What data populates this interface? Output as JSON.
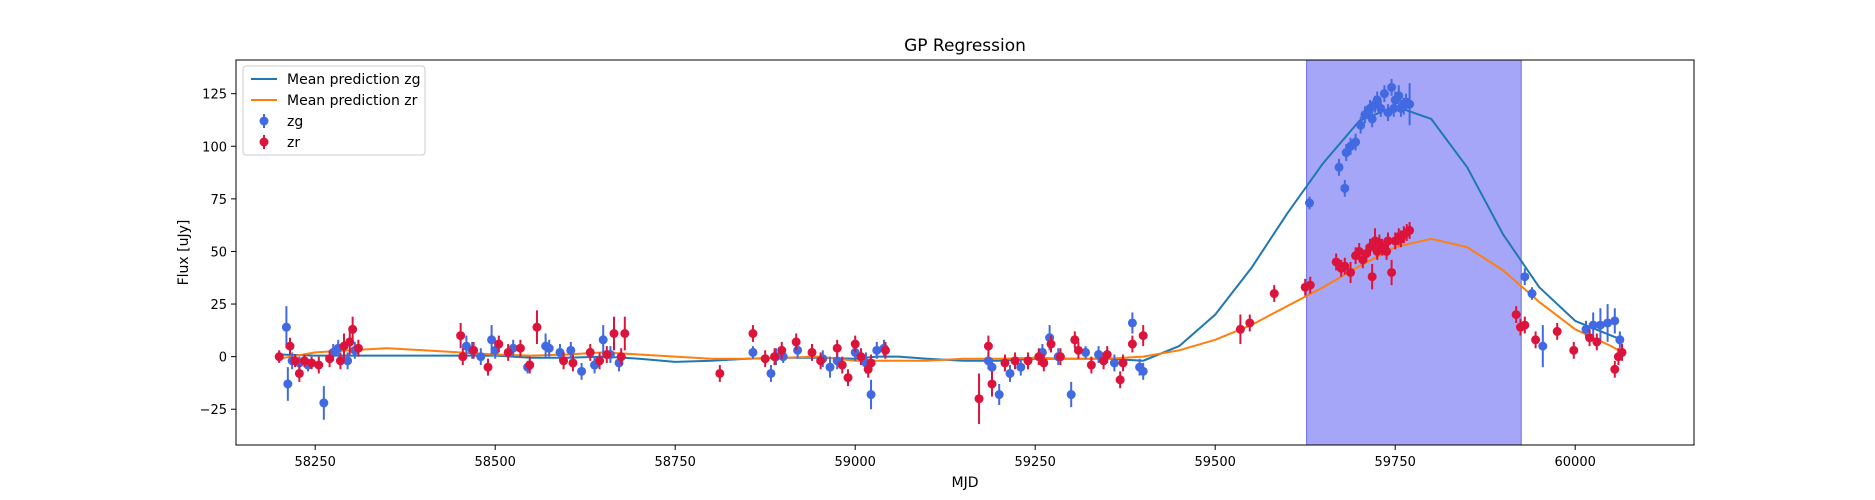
{
  "chart_data": {
    "type": "scatter",
    "title": "GP Regression",
    "xlabel": "MJD",
    "ylabel": "Flux [uJy]",
    "xlim": [
      58140,
      60165
    ],
    "ylim": [
      -42,
      141
    ],
    "x_ticks": [
      58250,
      58500,
      58750,
      59000,
      59250,
      59500,
      59750,
      60000
    ],
    "y_ticks": [
      -25,
      0,
      25,
      50,
      75,
      100,
      125
    ],
    "legend_position": "top-left",
    "shaded_region": {
      "x_start": 59627,
      "x_end": 59925,
      "color": "#a6a6f8"
    },
    "series": [
      {
        "name": "Mean prediction zg",
        "kind": "line",
        "color": "#1f77b4",
        "x": [
          58200,
          58250,
          58300,
          58350,
          58400,
          58450,
          58500,
          58550,
          58600,
          58650,
          58700,
          58750,
          58800,
          58850,
          58900,
          58950,
          59000,
          59030,
          59060,
          59100,
          59150,
          59200,
          59250,
          59300,
          59350,
          59400,
          59450,
          59500,
          59550,
          59600,
          59650,
          59700,
          59750,
          59800,
          59850,
          59900,
          59950,
          60000,
          60050,
          60065
        ],
        "y": [
          1,
          0.5,
          0.5,
          0.5,
          0.5,
          0.5,
          0.5,
          -0.5,
          -0.5,
          0,
          -1,
          -2.5,
          -2,
          -1,
          -0.5,
          -0.5,
          -1,
          0,
          0,
          -1,
          -2,
          -2,
          -1,
          -1,
          -1,
          -2,
          5,
          20,
          42,
          68,
          92,
          112,
          119,
          113,
          90,
          58,
          33,
          17,
          10,
          8
        ]
      },
      {
        "name": "Mean prediction zr",
        "kind": "line",
        "color": "#ff7f0e",
        "x": [
          58200,
          58250,
          58300,
          58350,
          58400,
          58450,
          58500,
          58550,
          58600,
          58650,
          58700,
          58750,
          58800,
          58850,
          58900,
          58950,
          59000,
          59050,
          59100,
          59150,
          59200,
          59250,
          59300,
          59350,
          59400,
          59450,
          59500,
          59550,
          59600,
          59650,
          59700,
          59750,
          59800,
          59850,
          59900,
          59950,
          60000,
          60050,
          60065
        ],
        "y": [
          -1,
          2,
          3,
          4,
          3,
          2,
          1,
          0.5,
          1,
          2,
          1,
          0,
          -1,
          -1,
          -0.5,
          0,
          -2,
          -2,
          -2,
          -1,
          -1,
          -0.5,
          -1,
          -1,
          0,
          3,
          8,
          15,
          24,
          33,
          43,
          52,
          56,
          52,
          41,
          26,
          13,
          5,
          2
        ]
      },
      {
        "name": "zg",
        "kind": "errorbar",
        "color": "#4169e1",
        "x": [
          58210,
          58212,
          58218,
          58228,
          58240,
          58262,
          58275,
          58282,
          58295,
          58305,
          58460,
          58468,
          58480,
          58495,
          58500,
          58525,
          58545,
          58570,
          58575,
          58590,
          58605,
          58620,
          58638,
          58650,
          58660,
          58672,
          58858,
          58883,
          58890,
          58900,
          58920,
          58955,
          58965,
          58975,
          59000,
          59015,
          59022,
          59030,
          59040,
          59185,
          59190,
          59200,
          59215,
          59230,
          59260,
          59270,
          59282,
          59300,
          59320,
          59338,
          59360,
          59385,
          59395,
          59400,
          59631,
          59672,
          59680,
          59682,
          59688,
          59695,
          59702,
          59708,
          59715,
          59718,
          59722,
          59725,
          59730,
          59735,
          59740,
          59745,
          59748,
          59750,
          59755,
          59758,
          59762,
          59765,
          59770,
          59930,
          59940,
          59955,
          60015,
          60025,
          60035,
          60045,
          60055,
          60062
        ],
        "y": [
          14,
          -13,
          -2,
          -3,
          -4,
          -22,
          2,
          4,
          -2,
          3,
          5,
          3,
          0,
          8,
          3,
          4,
          -5,
          5,
          4,
          2,
          3,
          -7,
          -4,
          8,
          1,
          -3,
          2,
          -8,
          0,
          0,
          3,
          -1,
          -5,
          -2,
          2,
          -3,
          -18,
          3,
          4,
          -2,
          -5,
          -18,
          -8,
          -5,
          2,
          9,
          0,
          -18,
          2,
          1,
          -3,
          16,
          -5,
          -7,
          73,
          90,
          80,
          97,
          100,
          102,
          110,
          115,
          118,
          113,
          120,
          122,
          118,
          125,
          116,
          128,
          118,
          122,
          124,
          118,
          119,
          121,
          120,
          38,
          30,
          5,
          13,
          15,
          15,
          16,
          17,
          8
        ],
        "err": [
          10,
          8,
          4,
          3,
          3,
          8,
          4,
          4,
          4,
          4,
          5,
          4,
          4,
          7,
          4,
          4,
          3,
          6,
          4,
          4,
          4,
          4,
          4,
          7,
          4,
          4,
          3,
          4,
          4,
          3,
          4,
          4,
          5,
          4,
          4,
          5,
          7,
          4,
          4,
          4,
          4,
          5,
          4,
          4,
          4,
          6,
          4,
          6,
          3,
          4,
          4,
          5,
          4,
          4,
          3,
          4,
          4,
          4,
          4,
          4,
          4,
          4,
          4,
          4,
          4,
          4,
          4,
          4,
          4,
          4,
          4,
          4,
          5,
          4,
          4,
          4,
          10,
          4,
          3,
          10,
          4,
          6,
          8,
          9,
          6,
          4
        ]
      },
      {
        "name": "zr",
        "kind": "errorbar",
        "color": "#dc143c",
        "x": [
          58200,
          58215,
          58222,
          58228,
          58235,
          58245,
          58255,
          58270,
          58285,
          58290,
          58298,
          58302,
          58310,
          58452,
          58455,
          58470,
          58490,
          58505,
          58518,
          58535,
          58548,
          58558,
          58595,
          58608,
          58632,
          58645,
          58655,
          58665,
          58675,
          58680,
          58812,
          58858,
          58875,
          58888,
          58898,
          58918,
          58940,
          58952,
          58975,
          58982,
          58990,
          59000,
          59008,
          59018,
          59022,
          59042,
          59172,
          59185,
          59190,
          59208,
          59222,
          59240,
          59255,
          59262,
          59272,
          59285,
          59305,
          59310,
          59328,
          59345,
          59350,
          59368,
          59372,
          59385,
          59400,
          59535,
          59548,
          59582,
          59625,
          59632,
          59668,
          59675,
          59680,
          59688,
          59695,
          59700,
          59705,
          59710,
          59715,
          59718,
          59722,
          59725,
          59728,
          59732,
          59738,
          59740,
          59745,
          59750,
          59755,
          59758,
          59762,
          59766,
          59770,
          59918,
          59924,
          59930,
          59945,
          59975,
          59998,
          60020,
          60030,
          60055,
          60060,
          60065
        ],
        "y": [
          0,
          5,
          -2,
          -8,
          -2,
          -3,
          -4,
          -1,
          -2,
          5,
          7,
          13,
          4,
          10,
          0,
          3,
          -5,
          6,
          2,
          4,
          -4,
          14,
          -2,
          -3,
          2,
          -2,
          1,
          11,
          0,
          11,
          -8,
          11,
          -1,
          0,
          3,
          7,
          2,
          -2,
          4,
          -4,
          -10,
          6,
          0,
          -6,
          -3,
          3,
          -20,
          5,
          -13,
          -3,
          -2,
          -2,
          0,
          -3,
          6,
          0,
          8,
          3,
          -4,
          -2,
          1,
          -11,
          -3,
          6,
          10,
          13,
          16,
          30,
          33,
          34,
          45,
          42,
          43,
          40,
          48,
          50,
          46,
          49,
          52,
          38,
          55,
          50,
          54,
          52,
          50,
          55,
          40,
          55,
          57,
          56,
          58,
          59,
          60,
          20,
          14,
          15,
          8,
          12,
          3,
          9,
          7,
          -6,
          0,
          2
        ],
        "err": [
          3,
          4,
          3,
          4,
          3,
          3,
          4,
          4,
          4,
          6,
          6,
          6,
          4,
          6,
          4,
          4,
          4,
          4,
          4,
          4,
          4,
          8,
          4,
          4,
          4,
          4,
          4,
          8,
          4,
          8,
          4,
          4,
          4,
          4,
          4,
          4,
          4,
          4,
          4,
          4,
          4,
          4,
          4,
          4,
          4,
          4,
          12,
          5,
          6,
          4,
          4,
          4,
          4,
          4,
          4,
          4,
          4,
          4,
          4,
          4,
          4,
          4,
          4,
          4,
          5,
          7,
          4,
          4,
          4,
          4,
          4,
          4,
          4,
          5,
          4,
          4,
          4,
          4,
          4,
          6,
          6,
          4,
          4,
          4,
          4,
          4,
          6,
          4,
          4,
          4,
          4,
          4,
          4,
          4,
          4,
          4,
          4,
          4,
          4,
          4,
          4,
          4,
          4,
          4
        ]
      }
    ]
  }
}
